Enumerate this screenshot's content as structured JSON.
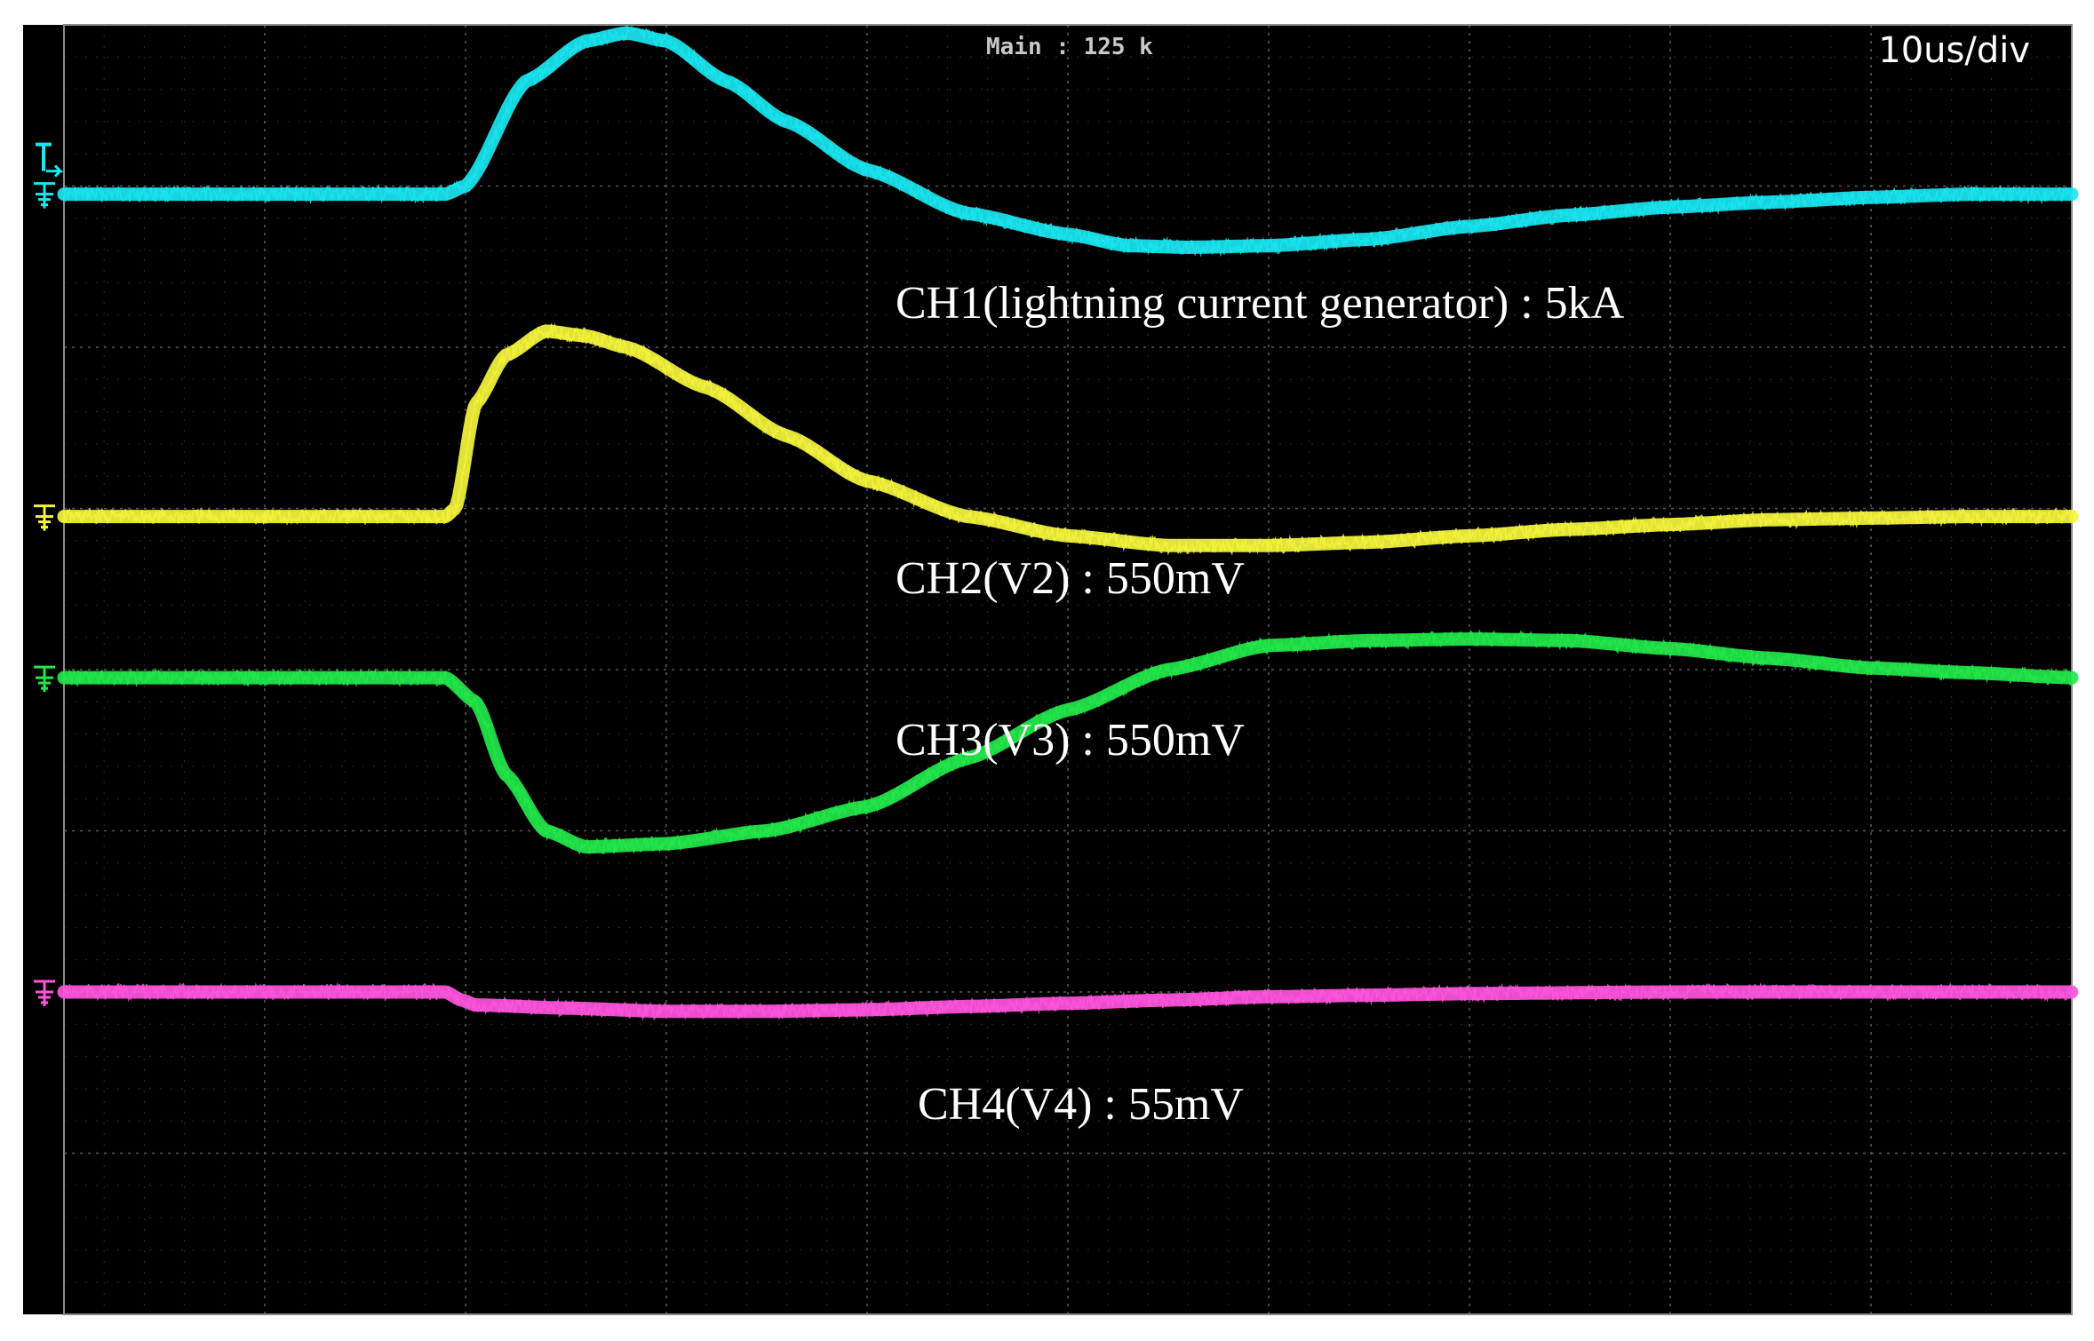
{
  "header": {
    "sample_info": "Main : 125 k",
    "timebase": "10us/div"
  },
  "chart_data": {
    "type": "line",
    "title": "",
    "xlabel": "",
    "ylabel": "",
    "grid": true,
    "x_unit": "us",
    "divisions": {
      "x": 10,
      "y": 8
    },
    "xlim": [
      0,
      100
    ],
    "ylim_div": [
      -4,
      4
    ],
    "series": [
      {
        "name": "CH1(lightning current generator) : 5kA",
        "color": "#19e6f0",
        "ground_marker": "ground-cyan",
        "baseline_div": 2.95,
        "x": [
          0,
          19,
          20,
          23,
          26,
          28,
          30,
          33,
          36,
          40,
          45,
          50,
          53,
          56,
          60,
          65,
          70,
          75,
          80,
          85,
          90,
          95,
          100
        ],
        "y": [
          0,
          0,
          0.05,
          0.7,
          0.95,
          1.0,
          0.95,
          0.7,
          0.45,
          0.15,
          -0.12,
          -0.25,
          -0.32,
          -0.33,
          -0.32,
          -0.28,
          -0.2,
          -0.13,
          -0.08,
          -0.05,
          -0.02,
          0,
          0
        ]
      },
      {
        "name": "CH2(V2) : 550mV",
        "color": "#f5f53c",
        "ground_marker": "ground-yellow",
        "baseline_div": 0.95,
        "x": [
          0,
          19,
          19.5,
          20.5,
          22,
          24,
          26,
          28,
          32,
          36,
          40,
          45,
          50,
          55,
          60,
          65,
          70,
          75,
          80,
          85,
          90,
          95,
          100
        ],
        "y": [
          0,
          0,
          0.05,
          0.7,
          1.0,
          1.15,
          1.12,
          1.05,
          0.8,
          0.5,
          0.22,
          0,
          -0.12,
          -0.18,
          -0.18,
          -0.16,
          -0.12,
          -0.08,
          -0.05,
          -0.02,
          -0.01,
          0,
          0
        ]
      },
      {
        "name": "CH3(V3) : 550mV",
        "color": "#22e84a",
        "ground_marker": "ground-green",
        "baseline_div": -0.05,
        "x": [
          0,
          19,
          20.5,
          22,
          24,
          26,
          30,
          35,
          40,
          45,
          50,
          55,
          60,
          65,
          70,
          75,
          80,
          85,
          90,
          95,
          100
        ],
        "y": [
          0,
          0,
          -0.15,
          -0.6,
          -0.95,
          -1.05,
          -1.03,
          -0.95,
          -0.8,
          -0.5,
          -0.2,
          0.05,
          0.2,
          0.23,
          0.24,
          0.23,
          0.18,
          0.12,
          0.06,
          0.03,
          0
        ]
      },
      {
        "name": "CH4(V4) : 55mV",
        "color": "#ff55dd",
        "ground_marker": "ground-magenta",
        "baseline_div": -2.0,
        "x": [
          0,
          19,
          19.8,
          20.5,
          25,
          30,
          35,
          40,
          45,
          50,
          55,
          60,
          65,
          70,
          80,
          90,
          100
        ],
        "y": [
          0,
          0,
          -0.05,
          -0.08,
          -0.1,
          -0.12,
          -0.12,
          -0.11,
          -0.09,
          -0.07,
          -0.05,
          -0.03,
          -0.02,
          -0.01,
          0,
          0,
          0
        ]
      }
    ]
  }
}
